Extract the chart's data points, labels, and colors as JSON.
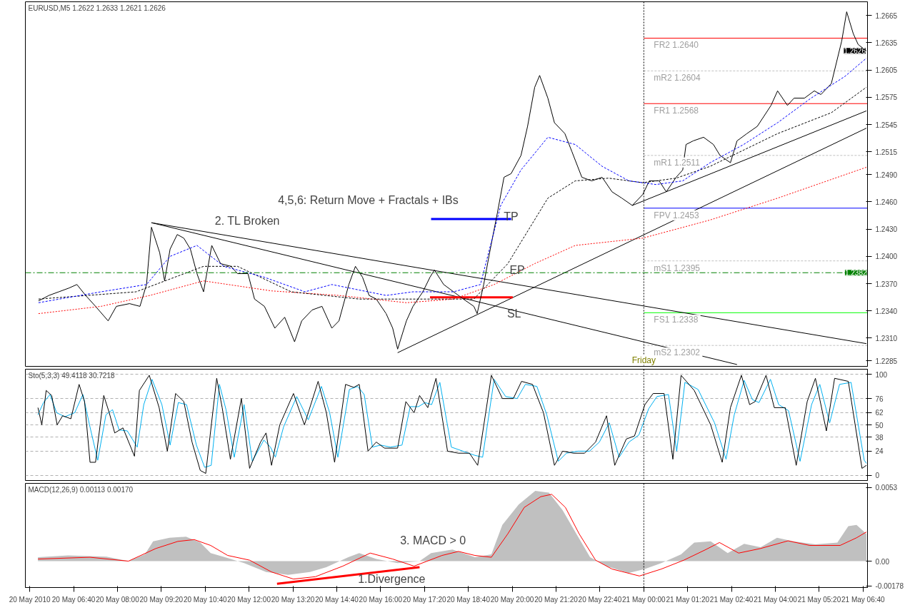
{
  "chart_data": [
    {
      "type": "line",
      "title": "EURUSD,M5  1.2622 1.2633 1.2621 1.2626",
      "xlim": [
        "2010-05-20T05:12",
        "2010-05-21T06:48"
      ],
      "ylim": [
        1.2279,
        1.268
      ],
      "yticks": [
        1.2665,
        1.2635,
        1.2605,
        1.2575,
        1.2545,
        1.2515,
        {
          "value": 1.249,
          "label": "1.2490"
        },
        {
          "value": 1.246,
          "label": "1.2460"
        },
        {
          "value": 1.243,
          "label": "1.2430"
        },
        {
          "value": 1.24,
          "label": "1.2400"
        },
        {
          "value": 1.237,
          "label": "1.2370"
        },
        {
          "value": 1.234,
          "label": "1.2340"
        },
        {
          "value": 1.231,
          "label": "1.2310"
        },
        1.2285
      ],
      "tick_labels": "y",
      "series": [
        {
          "color": "#ff0000",
          "line_style": "dotted",
          "x": [
            "2010-05-20T05:36",
            "2010-05-20T07:30",
            "2010-05-20T08:59",
            "2010-05-20T10:37",
            "2010-05-20T12:41",
            "2010-05-20T14:44",
            "2010-05-20T16:47",
            "2010-05-20T18:13",
            "2010-05-20T19:27",
            "2010-05-20T20:41",
            "2010-05-20T21:55",
            "2010-05-20T23:58",
            "2010-05-21T02:01",
            "2010-05-21T04:04",
            "2010-05-21T06:46"
          ],
          "values": [
            1.2337,
            1.2345,
            1.2357,
            1.2373,
            1.2362,
            1.2357,
            1.2349,
            1.2353,
            1.2369,
            1.2392,
            1.2412,
            1.242,
            1.244,
            1.2464,
            1.2498
          ]
        },
        {
          "color": "#000000",
          "line_style": "dashed",
          "x": [
            "2010-05-20T05:36",
            "2010-05-20T08:34",
            "2010-05-20T10:37",
            "2010-05-20T11:39",
            "2010-05-20T13:17",
            "2010-05-20T15:21",
            "2010-05-20T17:24",
            "2010-05-20T18:50",
            "2010-05-20T19:52",
            "2010-05-20T21:05",
            "2010-05-20T21:55",
            "2010-05-20T22:56",
            "2010-05-20T23:58",
            "2010-05-21T00:59",
            "2010-05-21T02:01",
            "2010-05-21T04:04",
            "2010-05-21T05:42",
            "2010-05-21T06:46"
          ],
          "values": [
            1.2353,
            1.2361,
            1.2389,
            1.2389,
            1.2361,
            1.2353,
            1.2353,
            1.2353,
            1.2392,
            1.2464,
            1.2483,
            1.2486,
            1.2481,
            1.2486,
            1.2499,
            1.2535,
            1.2558,
            1.2586
          ]
        },
        {
          "color": "#0000ff",
          "line_style": "dashed",
          "x": [
            "2010-05-20T05:36",
            "2010-05-20T07:30",
            "2010-05-20T08:53",
            "2010-05-20T09:36",
            "2010-05-20T10:25",
            "2010-05-20T11:14",
            "2010-05-20T12:28",
            "2010-05-20T13:42",
            "2010-05-20T14:31",
            "2010-05-20T16:10",
            "2010-05-20T16:59",
            "2010-05-20T18:13",
            "2010-05-20T19:02",
            "2010-05-20T19:39",
            "2010-05-20T20:16",
            "2010-05-20T21:05",
            "2010-05-20T21:55",
            "2010-05-20T22:44",
            "2010-05-20T23:33",
            "2010-05-21T00:22",
            "2010-05-21T01:11",
            "2010-05-21T02:01",
            "2010-05-21T03:02",
            "2010-05-21T04:04",
            "2010-05-21T05:05",
            "2010-05-21T06:07",
            "2010-05-21T06:46"
          ],
          "values": [
            1.2349,
            1.2361,
            1.2369,
            1.24,
            1.2412,
            1.2389,
            1.2377,
            1.2361,
            1.2369,
            1.2357,
            1.2361,
            1.2361,
            1.2369,
            1.2456,
            1.2495,
            1.2531,
            1.2523,
            1.2499,
            1.2483,
            1.2479,
            1.2483,
            1.2503,
            1.2523,
            1.2547,
            1.2574,
            1.2598,
            1.2618
          ]
        },
        {
          "color": "#000000",
          "x": [
            "2010-05-20T09:02",
            "2010-05-21T06:46"
          ],
          "values": [
            1.2437,
            1.2304
          ]
        },
        {
          "color": "#000000",
          "x": [
            "2010-05-20T09:02",
            "2010-05-21T02:50"
          ],
          "values": [
            1.2437,
            1.2281
          ]
        },
        {
          "color": "#000000",
          "x": [
            "2010-05-20T16:31",
            "2010-05-21T06:46"
          ],
          "values": [
            1.2294,
            1.2541
          ]
        },
        {
          "color": "#000000",
          "x": [
            "2010-05-20T23:39",
            "2010-05-21T06:46"
          ],
          "values": [
            1.2456,
            1.256
          ]
        },
        {
          "color": "#ff0000",
          "x": [
            "2010-05-20T17:30",
            "2010-05-20T20:01"
          ],
          "values": [
            1.2355,
            1.2355
          ]
        },
        {
          "color": "#0000ff",
          "x": [
            "2010-05-20T17:32",
            "2010-05-20T19:58"
          ],
          "values": [
            1.2441,
            1.2441
          ]
        },
        {
          "color": "#000000",
          "x": [
            "2010-05-20T05:36",
            "2010-05-20T05:55",
            "2010-05-20T06:13",
            "2010-05-20T06:31",
            "2010-05-20T06:46",
            "2010-05-20T07:02",
            "2010-05-20T07:20",
            "2010-05-20T07:43",
            "2010-05-20T07:58",
            "2010-05-20T08:22",
            "2010-05-20T08:41",
            "2010-05-20T08:53",
            "2010-05-20T09:02",
            "2010-05-20T09:17",
            "2010-05-20T09:26",
            "2010-05-20T09:36",
            "2010-05-20T09:49",
            "2010-05-20T10:01",
            "2010-05-20T10:13",
            "2010-05-20T10:25",
            "2010-05-20T10:37",
            "2010-05-20T10:52",
            "2010-05-20T11:08",
            "2010-05-20T11:27",
            "2010-05-20T11:39",
            "2010-05-20T11:58",
            "2010-05-20T12:10",
            "2010-05-20T12:28",
            "2010-05-20T12:47",
            "2010-05-20T13:05",
            "2010-05-20T13:23",
            "2010-05-20T13:36",
            "2010-05-20T13:55",
            "2010-05-20T14:13",
            "2010-05-20T14:31",
            "2010-05-20T14:44",
            "2010-05-20T15:02",
            "2010-05-20T15:14",
            "2010-05-20T15:27",
            "2010-05-20T15:39",
            "2010-05-20T15:52",
            "2010-05-20T16:10",
            "2010-05-20T16:22",
            "2010-05-20T16:31",
            "2010-05-20T16:47",
            "2010-05-20T16:59",
            "2010-05-20T17:17",
            "2010-05-20T17:30",
            "2010-05-20T17:38",
            "2010-05-20T17:55",
            "2010-05-20T18:13",
            "2010-05-20T18:31",
            "2010-05-20T18:50",
            "2010-05-20T18:56",
            "2010-05-20T19:08",
            "2010-05-20T19:20",
            "2010-05-20T19:33",
            "2010-05-20T19:45",
            "2010-05-20T19:58",
            "2010-05-20T20:16",
            "2010-05-20T20:28",
            "2010-05-20T20:41",
            "2010-05-20T20:50",
            "2010-05-20T21:05",
            "2010-05-20T21:17",
            "2010-05-20T21:36",
            "2010-05-20T21:49",
            "2010-05-20T22:07",
            "2010-05-20T22:25",
            "2010-05-20T22:44",
            "2010-05-20T23:02",
            "2010-05-20T23:20",
            "2010-05-20T23:39",
            "2010-05-20T23:58",
            "2010-05-21T00:10",
            "2010-05-21T00:28",
            "2010-05-21T00:41",
            "2010-05-21T00:59",
            "2010-05-21T01:11",
            "2010-05-21T01:17",
            "2010-05-21T01:30",
            "2010-05-21T01:49",
            "2010-05-21T02:07",
            "2010-05-21T02:19",
            "2010-05-21T02:38",
            "2010-05-21T02:50",
            "2010-05-21T03:08",
            "2010-05-21T03:27",
            "2010-05-21T03:39",
            "2010-05-21T03:52",
            "2010-05-21T04:04",
            "2010-05-21T04:22",
            "2010-05-21T04:34",
            "2010-05-21T04:53",
            "2010-05-21T05:11",
            "2010-05-21T05:23",
            "2010-05-21T05:42",
            "2010-05-21T06:01",
            "2010-05-21T06:10",
            "2010-05-21T06:22",
            "2010-05-21T06:31",
            "2010-05-21T06:46"
          ],
          "values": [
            1.2351,
            1.2357,
            1.2361,
            1.2365,
            1.2369,
            1.2357,
            1.2345,
            1.2329,
            1.2345,
            1.2348,
            1.2345,
            1.2369,
            1.2432,
            1.2404,
            1.2373,
            1.2408,
            1.2424,
            1.242,
            1.2408,
            1.2381,
            1.2361,
            1.2412,
            1.2392,
            1.2389,
            1.2381,
            1.2381,
            1.2353,
            1.2345,
            1.2321,
            1.2333,
            1.2306,
            1.2329,
            1.2341,
            1.2345,
            1.2321,
            1.2329,
            1.2369,
            1.2389,
            1.2377,
            1.2357,
            1.2353,
            1.2337,
            1.2321,
            1.2298,
            1.2329,
            1.2345,
            1.2361,
            1.2377,
            1.2385,
            1.2369,
            1.2361,
            1.2353,
            1.2345,
            1.2337,
            1.2369,
            1.2408,
            1.2448,
            1.2487,
            1.2491,
            1.2511,
            1.2543,
            1.2586,
            1.2599,
            1.2574,
            1.2547,
            1.2535,
            1.2515,
            1.2487,
            1.2483,
            1.2487,
            1.2471,
            1.2464,
            1.2456,
            1.2468,
            1.2483,
            1.2483,
            1.2471,
            1.2487,
            1.2495,
            1.2523,
            1.2527,
            1.2531,
            1.2523,
            1.2511,
            1.2503,
            1.2527,
            1.2535,
            1.2543,
            1.2554,
            1.2566,
            1.2582,
            1.2566,
            1.2574,
            1.2574,
            1.2582,
            1.2578,
            1.259,
            1.2637,
            1.2669,
            1.2645,
            1.2633,
            1.2626
          ]
        }
      ],
      "ref_lines": [
        {
          "axis": "x",
          "value": "2010-05-21T00:00",
          "label": "Friday",
          "color": "#000000",
          "line_style": "dotted"
        },
        {
          "axis": "y",
          "value": 1.264,
          "label": "FR2  1.2640",
          "color": "#ff0000",
          "line_style": "solid"
        },
        {
          "axis": "y",
          "value": 1.2604,
          "label": "mR2  1.2604",
          "color": "#c0c0c0",
          "line_style": "dashed"
        },
        {
          "axis": "y",
          "value": 1.2568,
          "label": "FR1  1.2568",
          "color": "#ff0000",
          "line_style": "solid"
        },
        {
          "axis": "y",
          "value": 1.2511,
          "label": "mR1  1.2511",
          "color": "#c0c0c0",
          "line_style": "dashed"
        },
        {
          "axis": "y",
          "value": 1.2453,
          "label": "FPV  1.2453",
          "color": "#0000ff",
          "line_style": "solid"
        },
        {
          "axis": "y",
          "value": 1.2395,
          "label": "mS1  1.2395",
          "color": "#c0c0c0",
          "line_style": "dashed"
        },
        {
          "axis": "y",
          "value": 1.2338,
          "label": "FS1  1.2338",
          "color": "#00ff00",
          "line_style": "solid"
        },
        {
          "axis": "y",
          "value": 1.2302,
          "label": "mS2  1.2302",
          "color": "#c0c0c0",
          "line_style": "dashed"
        },
        {
          "axis": "y",
          "value": 1.2382,
          "label": "1.2382",
          "color": "#008000",
          "line_style": "dashdot"
        }
      ],
      "annotations": [
        "2. TL Broken",
        "4,5,6: Return Move + Fractals + IBs",
        "TP",
        "EP",
        "SL",
        {
          "text": "1.2626",
          "x": "2010-05-21T06:46",
          "y": 1.2626
        }
      ]
    },
    {
      "type": "line",
      "title": "Sto(5,3,3) 49.4118 30.7218",
      "xlim": [
        "2010-05-20T05:12",
        "2010-05-21T06:48"
      ],
      "ylim": [
        -5,
        105
      ],
      "yticks": [
        0,
        24,
        38,
        50,
        62,
        76,
        100
      ],
      "grid": "y",
      "tick_labels": "y",
      "ref_lines": [
        {
          "axis": "x",
          "value": "2010-05-21T00:00",
          "color": "#000000",
          "line_style": "dotted"
        }
      ],
      "series": [
        {
          "color": "#00b0f0",
          "x": [
            "2010-05-20T05:35",
            "2010-05-20T05:45",
            "2010-05-20T05:57",
            "2010-05-20T06:09",
            "2010-05-20T06:24",
            "2010-05-20T06:42",
            "2010-05-20T06:57",
            "2010-05-20T07:09",
            "2010-05-20T07:24",
            "2010-05-20T07:39",
            "2010-05-20T07:51",
            "2010-05-20T08:03",
            "2010-05-20T08:18",
            "2010-05-20T08:36",
            "2010-05-20T08:48",
            "2010-05-20T09:03",
            "2010-05-20T09:21",
            "2010-05-20T09:36",
            "2010-05-20T09:51",
            "2010-05-20T10:06",
            "2010-05-20T10:24",
            "2010-05-20T10:39",
            "2010-05-20T10:51",
            "2010-05-20T11:06",
            "2010-05-20T11:18",
            "2010-05-20T11:33",
            "2010-05-20T11:51",
            "2010-05-20T12:06",
            "2010-05-20T12:27",
            "2010-05-20T12:39",
            "2010-05-20T12:48",
            "2010-05-20T13:03",
            "2010-05-20T13:27",
            "2010-05-20T13:48",
            "2010-05-20T14:12",
            "2010-05-20T14:27",
            "2010-05-20T14:42",
            "2010-05-20T15:03",
            "2010-05-20T15:18",
            "2010-05-20T15:30",
            "2010-05-20T15:45",
            "2010-05-20T16:00",
            "2010-05-20T16:18",
            "2010-05-20T16:39",
            "2010-05-20T16:54",
            "2010-05-20T17:09",
            "2010-05-20T17:21",
            "2010-05-20T17:33",
            "2010-05-20T17:48",
            "2010-05-20T18:09",
            "2010-05-20T18:30",
            "2010-05-20T18:51",
            "2010-05-20T19:06",
            "2010-05-20T19:27",
            "2010-05-20T19:48",
            "2010-05-20T20:09",
            "2010-05-20T20:24",
            "2010-05-20T20:45",
            "2010-05-20T21:03",
            "2010-05-20T21:24",
            "2010-05-20T21:39",
            "2010-05-20T22:00",
            "2010-05-20T22:21",
            "2010-05-20T22:39",
            "2010-05-20T22:57",
            "2010-05-20T23:15",
            "2010-05-20T23:33",
            "2010-05-20T23:51",
            "2010-05-21T00:09",
            "2010-05-21T00:24",
            "2010-05-21T00:45",
            "2010-05-21T01:00",
            "2010-05-21T01:15",
            "2010-05-21T01:39",
            "2010-05-21T02:09",
            "2010-05-21T02:30",
            "2010-05-21T02:45",
            "2010-05-21T03:03",
            "2010-05-21T03:18",
            "2010-05-21T03:30",
            "2010-05-21T03:51",
            "2010-05-21T04:06",
            "2010-05-21T04:24",
            "2010-05-21T04:45",
            "2010-05-21T05:06",
            "2010-05-21T05:21",
            "2010-05-21T05:39",
            "2010-05-21T05:57",
            "2010-05-21T06:18",
            "2010-05-21T06:42",
            "2010-05-21T06:46"
          ],
          "values": [
            60,
            72,
            80,
            62,
            58,
            62,
            80,
            50,
            15,
            60,
            65,
            45,
            44,
            28,
            70,
            95,
            70,
            30,
            72,
            70,
            30,
            8,
            10,
            90,
            65,
            18,
            70,
            14,
            35,
            28,
            18,
            48,
            78,
            55,
            88,
            62,
            18,
            85,
            88,
            80,
            28,
            30,
            28,
            30,
            68,
            68,
            72,
            70,
            92,
            28,
            24,
            20,
            18,
            95,
            78,
            76,
            90,
            88,
            60,
            14,
            22,
            24,
            24,
            33,
            52,
            18,
            33,
            40,
            66,
            78,
            80,
            24,
            92,
            85,
            52,
            16,
            60,
            94,
            75,
            72,
            95,
            70,
            64,
            14,
            70,
            90,
            52,
            90,
            92,
            15,
            12
          ]
        },
        {
          "color": "#000000",
          "x": [
            "2010-05-20T05:35",
            "2010-05-20T05:42",
            "2010-05-20T05:50",
            "2010-05-20T06:00",
            "2010-05-20T06:10",
            "2010-05-20T06:20",
            "2010-05-20T06:35",
            "2010-05-20T06:50",
            "2010-05-20T07:00",
            "2010-05-20T07:10",
            "2010-05-20T07:20",
            "2010-05-20T07:35",
            "2010-05-20T07:45",
            "2010-05-20T07:55",
            "2010-05-20T08:10",
            "2010-05-20T08:31",
            "2010-05-20T08:40",
            "2010-05-20T08:58",
            "2010-05-20T09:16",
            "2010-05-20T09:31",
            "2010-05-20T09:46",
            "2010-05-20T10:01",
            "2010-05-20T10:16",
            "2010-05-20T10:31",
            "2010-05-20T10:41",
            "2010-05-20T11:01",
            "2010-05-20T11:11",
            "2010-05-20T11:26",
            "2010-05-20T11:46",
            "2010-05-20T12:01",
            "2010-05-20T12:21",
            "2010-05-20T12:31",
            "2010-05-20T12:41",
            "2010-05-20T12:56",
            "2010-05-20T13:21",
            "2010-05-20T13:41",
            "2010-05-20T14:06",
            "2010-05-20T14:21",
            "2010-05-20T14:36",
            "2010-05-20T14:56",
            "2010-05-20T15:11",
            "2010-05-20T15:21",
            "2010-05-20T15:37",
            "2010-05-20T15:52",
            "2010-05-20T16:07",
            "2010-05-20T16:31",
            "2010-05-20T16:46",
            "2010-05-20T17:01",
            "2010-05-20T17:11",
            "2010-05-20T17:26",
            "2010-05-20T17:41",
            "2010-05-20T18:02",
            "2010-05-20T18:22",
            "2010-05-20T18:42",
            "2010-05-20T18:57",
            "2010-05-20T19:22",
            "2010-05-20T19:42",
            "2010-05-20T20:02",
            "2010-05-20T20:17",
            "2010-05-20T20:37",
            "2010-05-20T20:57",
            "2010-05-20T21:17",
            "2010-05-20T21:32",
            "2010-05-20T21:52",
            "2010-05-20T22:12",
            "2010-05-20T22:32",
            "2010-05-20T22:52",
            "2010-05-20T23:07",
            "2010-05-20T23:28",
            "2010-05-20T23:43",
            "2010-05-21T00:02",
            "2010-05-21T00:17",
            "2010-05-21T00:37",
            "2010-05-21T00:53",
            "2010-05-21T01:08",
            "2010-05-21T01:32",
            "2010-05-21T02:02",
            "2010-05-21T02:23",
            "2010-05-21T02:38",
            "2010-05-21T02:58",
            "2010-05-21T03:13",
            "2010-05-21T03:23",
            "2010-05-21T03:43",
            "2010-05-21T03:58",
            "2010-05-21T04:18",
            "2010-05-21T04:38",
            "2010-05-21T04:58",
            "2010-05-21T05:13",
            "2010-05-21T05:33",
            "2010-05-21T05:48",
            "2010-05-21T06:13",
            "2010-05-21T06:38",
            "2010-05-21T06:46"
          ],
          "values": [
            67,
            50,
            84,
            79,
            50,
            59,
            56,
            90,
            73,
            13,
            13,
            79,
            62,
            42,
            47,
            19,
            84,
            99,
            67,
            24,
            81,
            73,
            33,
            5,
            2,
            96,
            67,
            16,
            76,
            7,
            33,
            42,
            10,
            50,
            81,
            50,
            93,
            62,
            13,
            90,
            87,
            90,
            24,
            33,
            27,
            27,
            73,
            62,
            79,
            67,
            96,
            24,
            22,
            22,
            10,
            99,
            76,
            76,
            93,
            90,
            62,
            10,
            24,
            22,
            22,
            33,
            59,
            10,
            36,
            39,
            70,
            81,
            81,
            16,
            99,
            84,
            50,
            13,
            67,
            99,
            70,
            73,
            99,
            67,
            67,
            10,
            73,
            96,
            44,
            96,
            93,
            7,
            10
          ]
        }
      ]
    },
    {
      "type": "line",
      "title": "MACD(12,26,9) 0.00113 0.00170",
      "xlim": [
        "2010-05-20T05:12",
        "2010-05-21T06:48"
      ],
      "ylim": [
        -0.0019,
        0.0056
      ],
      "yticks": [
        {
          "value": 0.0053,
          "label": "0.0053"
        },
        {
          "value": 0,
          "label": "0.00"
        },
        {
          "value": -0.00178,
          "label": "-0.00178"
        }
      ],
      "xticks": [
        {
          "value": "2010-05-20T05:20",
          "label": "20 May 2010"
        },
        {
          "value": "2010-05-20T06:40",
          "label": "20 May 06:40"
        },
        {
          "value": "2010-05-20T08:00",
          "label": "20 May 08:00"
        },
        {
          "value": "2010-05-20T09:20",
          "label": "20 May 09:20"
        },
        {
          "value": "2010-05-20T10:40",
          "label": "20 May 10:40"
        },
        {
          "value": "2010-05-20T12:00",
          "label": "20 May 12:00"
        },
        {
          "value": "2010-05-20T13:20",
          "label": "20 May 13:20"
        },
        {
          "value": "2010-05-20T14:40",
          "label": "20 May 14:40"
        },
        {
          "value": "2010-05-20T16:00",
          "label": "20 May 16:00"
        },
        {
          "value": "2010-05-20T17:20",
          "label": "20 May 17:20"
        },
        {
          "value": "2010-05-20T18:40",
          "label": "20 May 18:40"
        },
        {
          "value": "2010-05-20T20:00",
          "label": "20 May 20:00"
        },
        {
          "value": "2010-05-20T21:20",
          "label": "20 May 21:20"
        },
        {
          "value": "2010-05-20T22:40",
          "label": "20 May 22:40"
        },
        {
          "value": "2010-05-21T00:00",
          "label": "21 May 00:00"
        },
        {
          "value": "2010-05-21T01:20",
          "label": "21 May 01:20"
        },
        {
          "value": "2010-05-21T02:40",
          "label": "21 May 02:40"
        },
        {
          "value": "2010-05-21T04:00",
          "label": "21 May 04:00"
        },
        {
          "value": "2010-05-21T05:20",
          "label": "21 May 05:20"
        },
        {
          "value": "2010-05-21T06:40",
          "label": "21 May 06:40"
        }
      ],
      "ref_lines": [
        {
          "axis": "x",
          "value": "2010-05-21T00:00",
          "color": "#000000",
          "line_style": "dotted"
        }
      ],
      "series": [
        {
          "type": "area",
          "color": "#c0c0c0",
          "x": [
            "2010-05-20T05:35",
            "2010-05-20T06:30",
            "2010-05-20T07:40",
            "2010-05-20T08:20",
            "2010-05-20T08:50",
            "2010-05-20T09:05",
            "2010-05-20T09:35",
            "2010-05-20T10:05",
            "2010-05-20T10:31",
            "2010-05-20T10:50",
            "2010-05-20T11:16",
            "2010-05-20T11:51",
            "2010-05-20T12:31",
            "2010-05-20T13:11",
            "2010-05-20T13:51",
            "2010-05-20T14:21",
            "2010-05-20T15:01",
            "2010-05-20T15:21",
            "2010-05-20T15:52",
            "2010-05-20T16:31",
            "2010-05-20T17:11",
            "2010-05-20T17:32",
            "2010-05-20T18:11",
            "2010-05-20T18:52",
            "2010-05-20T19:22",
            "2010-05-20T19:42",
            "2010-05-20T20:12",
            "2010-05-20T20:42",
            "2010-05-20T21:07",
            "2010-05-20T21:32",
            "2010-05-20T21:57",
            "2010-05-20T22:22",
            "2010-05-20T22:52",
            "2010-05-20T23:32",
            "2010-05-21T00:02",
            "2010-05-21T00:32",
            "2010-05-21T01:08",
            "2010-05-21T01:32",
            "2010-05-21T02:02",
            "2010-05-21T02:33",
            "2010-05-21T03:03",
            "2010-05-21T03:33",
            "2010-05-21T04:03",
            "2010-05-21T04:33",
            "2010-05-21T05:13",
            "2010-05-21T05:53",
            "2010-05-21T06:13",
            "2010-05-21T06:28",
            "2010-05-21T06:46"
          ],
          "values": [
            0.00028,
            0.00041,
            0.00032,
            0,
            0.00049,
            0.00142,
            0.00168,
            0.00176,
            0.00134,
            0.00058,
            0.00028,
            -0.00014,
            -0.00078,
            -0.00099,
            -0.00078,
            -0.00044,
            0.00028,
            0.00058,
            0.00015,
            -0.00014,
            0,
            0.00058,
            0.00083,
            0.00028,
            0.00049,
            0.00261,
            0.00409,
            0.00506,
            0.00493,
            0.00366,
            0.00197,
            0.00028,
            -0.00036,
            -0.00086,
            -0.00057,
            -0.00014,
            0.00049,
            0.00134,
            0.00142,
            0.00058,
            0.00125,
            0.001,
            0.00168,
            0.00142,
            0.00121,
            0.00134,
            0.00252,
            0.00261,
            0.00197
          ]
        },
        {
          "color": "#ff0000",
          "x": [
            "2010-05-20T05:35",
            "2010-05-20T07:10",
            "2010-05-20T08:20",
            "2010-05-20T09:10",
            "2010-05-20T09:50",
            "2010-05-20T10:20",
            "2010-05-20T10:50",
            "2010-05-20T11:21",
            "2010-05-20T12:01",
            "2010-05-20T12:41",
            "2010-05-20T13:21",
            "2010-05-20T14:01",
            "2010-05-20T14:51",
            "2010-05-20T15:41",
            "2010-05-20T16:22",
            "2010-05-20T17:01",
            "2010-05-20T17:52",
            "2010-05-20T18:22",
            "2010-05-20T18:52",
            "2010-05-20T19:22",
            "2010-05-20T19:52",
            "2010-05-20T20:22",
            "2010-05-20T20:52",
            "2010-05-20T21:12",
            "2010-05-20T21:37",
            "2010-05-20T22:02",
            "2010-05-20T22:32",
            "2010-05-20T23:02",
            "2010-05-20T23:52",
            "2010-05-21T00:32",
            "2010-05-21T01:13",
            "2010-05-21T01:53",
            "2010-05-21T02:18",
            "2010-05-21T02:53",
            "2010-05-21T03:33",
            "2010-05-21T04:23",
            "2010-05-21T05:03",
            "2010-05-21T05:58",
            "2010-05-21T06:28",
            "2010-05-21T06:46"
          ],
          "values": [
            0.00015,
            0.00028,
            0,
            0.00091,
            0.00142,
            0.00155,
            0.00113,
            0.00041,
            7e-05,
            -0.00078,
            -0.00129,
            -0.00112,
            -0.00036,
            0.00058,
            0.00015,
            -0.00036,
            0.00041,
            0.0007,
            0.00041,
            0.00028,
            0.00197,
            0.00387,
            0.00464,
            0.00481,
            0.00387,
            0.00197,
            7e-05,
            -0.00057,
            -0.00107,
            -0.00057,
            7e-05,
            0.00083,
            0.00134,
            0.00058,
            0.00091,
            0.00146,
            0.00113,
            0.00113,
            0.00168,
            0.0021
          ]
        },
        {
          "color": "#ff0000",
          "x": [
            "2010-05-20T12:51",
            "2010-05-20T17:11"
          ],
          "values": [
            -0.00163,
            -0.00044
          ]
        }
      ],
      "annotations": [
        "3. MACD > 0",
        "1.Divergence"
      ]
    }
  ]
}
